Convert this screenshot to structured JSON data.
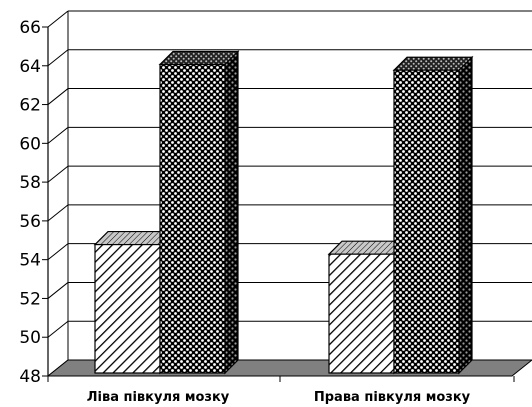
{
  "chart_data": {
    "type": "bar",
    "style": "3d-clustered-column",
    "categories": [
      "Ліва півкуля мозку",
      "Права півкуля мозку"
    ],
    "series": [
      {
        "values": [
          54.7,
          54.2
        ],
        "fill": "diagonal-hatch"
      },
      {
        "values": [
          64.1,
          63.8
        ],
        "fill": "dot-pattern"
      }
    ],
    "ylim": [
      48,
      66
    ],
    "ytick_step": 2,
    "yticks": [
      "48",
      "50",
      "52",
      "54",
      "56",
      "58",
      "60",
      "62",
      "64",
      "66"
    ],
    "grid": true,
    "legend": "none",
    "colors": {
      "floor": "#808080",
      "grid": "#000000",
      "bar_outline": "#000000"
    }
  }
}
